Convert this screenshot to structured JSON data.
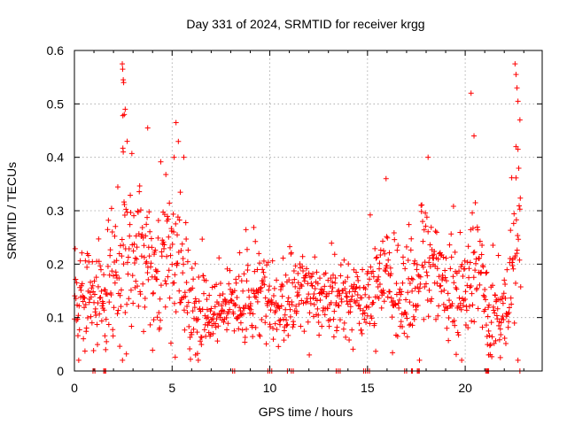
{
  "chart_data": {
    "type": "scatter",
    "title": "Day 331 of 2024, SRMTID for receiver krgg",
    "xlabel": "GPS time / hours",
    "ylabel": "SRMTID / TECUs",
    "xlim": [
      0,
      23.94
    ],
    "ylim": [
      0,
      0.6
    ],
    "x_ticks": [
      0,
      5,
      10,
      15,
      20
    ],
    "y_ticks": [
      0,
      0.1,
      0.2,
      0.3,
      0.4,
      0.5,
      0.6
    ],
    "x_tick_labels": [
      "0",
      "5",
      "10",
      "15",
      "20"
    ],
    "y_tick_labels": [
      "0",
      "0.1",
      "0.2",
      "0.3",
      "0.4",
      "0.5",
      "0.6"
    ],
    "grid": true,
    "marker": "+",
    "series_color": "#ff0000",
    "profile": [
      [
        0.0,
        0.12,
        0.05
      ],
      [
        0.5,
        0.13,
        0.05
      ],
      [
        1.0,
        0.12,
        0.04
      ],
      [
        1.5,
        0.14,
        0.05
      ],
      [
        2.0,
        0.16,
        0.05
      ],
      [
        2.5,
        0.24,
        0.09
      ],
      [
        3.0,
        0.22,
        0.07
      ],
      [
        3.5,
        0.19,
        0.06
      ],
      [
        4.0,
        0.17,
        0.06
      ],
      [
        4.5,
        0.21,
        0.06
      ],
      [
        5.0,
        0.24,
        0.07
      ],
      [
        5.5,
        0.22,
        0.07
      ],
      [
        6.0,
        0.1,
        0.04
      ],
      [
        6.5,
        0.13,
        0.05
      ],
      [
        7.0,
        0.1,
        0.03
      ],
      [
        7.5,
        0.11,
        0.03
      ],
      [
        8.0,
        0.11,
        0.03
      ],
      [
        8.5,
        0.13,
        0.04
      ],
      [
        9.0,
        0.14,
        0.04
      ],
      [
        9.5,
        0.15,
        0.05
      ],
      [
        10.0,
        0.13,
        0.04
      ],
      [
        10.5,
        0.12,
        0.04
      ],
      [
        11.0,
        0.13,
        0.05
      ],
      [
        11.5,
        0.13,
        0.04
      ],
      [
        12.0,
        0.15,
        0.04
      ],
      [
        12.5,
        0.14,
        0.04
      ],
      [
        13.0,
        0.13,
        0.04
      ],
      [
        13.5,
        0.15,
        0.05
      ],
      [
        14.0,
        0.13,
        0.04
      ],
      [
        14.5,
        0.13,
        0.04
      ],
      [
        15.0,
        0.14,
        0.04
      ],
      [
        15.5,
        0.15,
        0.05
      ],
      [
        16.0,
        0.17,
        0.05
      ],
      [
        16.5,
        0.14,
        0.05
      ],
      [
        17.0,
        0.13,
        0.05
      ],
      [
        17.5,
        0.16,
        0.05
      ],
      [
        18.0,
        0.2,
        0.07
      ],
      [
        18.5,
        0.18,
        0.06
      ],
      [
        19.0,
        0.15,
        0.05
      ],
      [
        19.5,
        0.16,
        0.06
      ],
      [
        20.0,
        0.15,
        0.05
      ],
      [
        20.5,
        0.18,
        0.07
      ],
      [
        21.0,
        0.14,
        0.06
      ],
      [
        21.5,
        0.09,
        0.04
      ],
      [
        22.0,
        0.11,
        0.04
      ],
      [
        22.5,
        0.18,
        0.08
      ],
      [
        22.8,
        0.22,
        0.1
      ]
    ],
    "notable_points": [
      [
        2.45,
        0.575
      ],
      [
        2.47,
        0.565
      ],
      [
        2.5,
        0.545
      ],
      [
        2.52,
        0.54
      ],
      [
        2.48,
        0.478
      ],
      [
        2.55,
        0.48
      ],
      [
        2.6,
        0.49
      ],
      [
        2.7,
        0.43
      ],
      [
        2.5,
        0.41
      ],
      [
        3.75,
        0.455
      ],
      [
        5.2,
        0.465
      ],
      [
        5.1,
        0.4
      ],
      [
        5.6,
        0.4
      ],
      [
        20.3,
        0.52
      ],
      [
        20.45,
        0.44
      ],
      [
        22.55,
        0.575
      ],
      [
        22.6,
        0.555
      ],
      [
        22.65,
        0.53
      ],
      [
        22.7,
        0.505
      ],
      [
        22.8,
        0.47
      ],
      [
        22.6,
        0.42
      ],
      [
        22.7,
        0.415
      ],
      [
        18.1,
        0.4
      ],
      [
        15.95,
        0.36
      ],
      [
        1.6,
        0.04
      ],
      [
        6.2,
        0.03
      ],
      [
        21.2,
        0.03
      ],
      [
        21.8,
        0.025
      ]
    ],
    "zero_points": [
      0.95,
      1.05,
      1.5,
      1.55,
      1.6,
      8.1,
      8.2,
      9.9,
      10.0,
      10.1,
      10.9,
      11.1,
      11.2,
      13.4,
      13.5,
      13.6,
      14.8,
      14.9,
      15.0,
      15.1,
      16.9,
      17.0,
      17.25,
      17.3,
      17.55,
      17.6,
      17.65,
      21.05,
      21.1,
      21.15,
      21.2,
      22.8
    ],
    "point_interval_hours": 0.02,
    "random_seed": 331
  }
}
